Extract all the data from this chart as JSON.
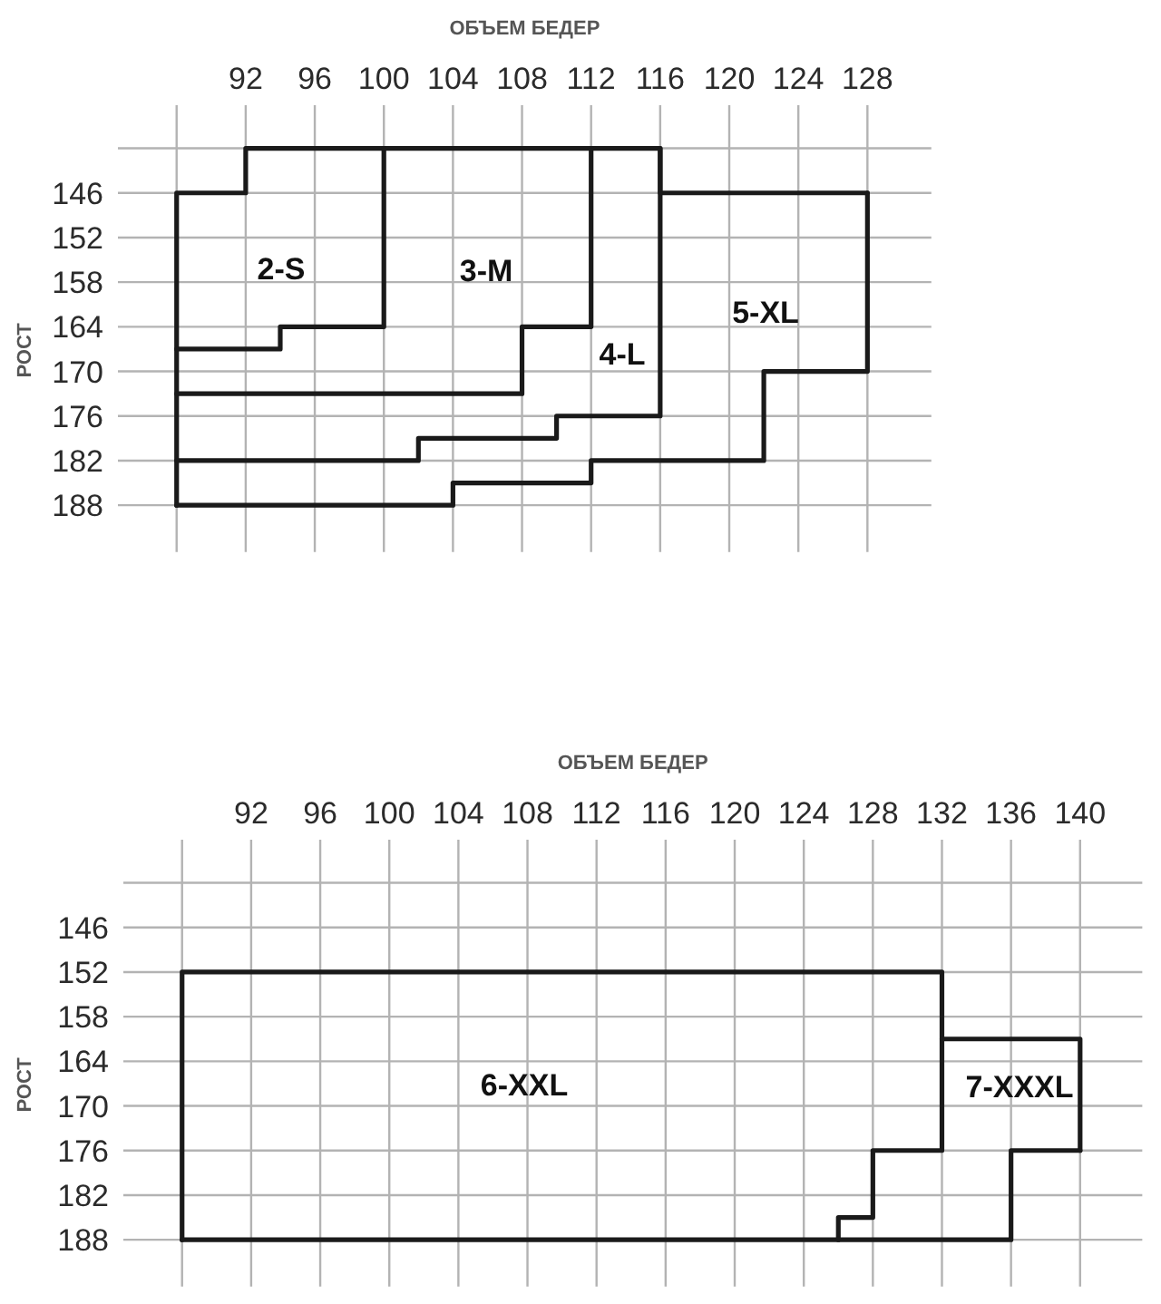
{
  "chart_data": [
    {
      "type": "line",
      "xlabel": "ОБЪЕМ БЕДЕР",
      "ylabel": "РОСТ",
      "xlim": [
        84.6,
        131.7
      ],
      "ylim": [
        194.3,
        134.2
      ],
      "xticks": [
        {
          "value": 88,
          "label": null
        },
        92,
        96,
        100,
        104,
        108,
        112,
        116,
        120,
        124,
        128
      ],
      "yticks": [
        {
          "value": 140,
          "label": null
        },
        146,
        152,
        158,
        164,
        170,
        176,
        182,
        188
      ],
      "grid": true,
      "line_style": "solid",
      "series": [
        {
          "color": "#1a1a1a",
          "x": [
            88,
            88,
            92,
            92,
            116,
            116,
            128
          ],
          "values": [
            188,
            146,
            146,
            140,
            140,
            146,
            146
          ]
        },
        {
          "color": "#1a1a1a",
          "x": [
            88,
            104,
            104,
            112,
            112,
            122,
            122,
            128,
            128
          ],
          "values": [
            188,
            188,
            185,
            185,
            182,
            182,
            170,
            170,
            146
          ]
        },
        {
          "color": "#1a1a1a",
          "x": [
            88,
            94,
            94,
            100,
            100
          ],
          "values": [
            167,
            167,
            164,
            164,
            140
          ]
        },
        {
          "color": "#1a1a1a",
          "x": [
            88,
            108,
            108,
            112,
            112
          ],
          "values": [
            173,
            173,
            164,
            164,
            140
          ]
        },
        {
          "color": "#1a1a1a",
          "x": [
            88,
            102,
            102,
            110,
            110,
            116,
            116
          ],
          "values": [
            182,
            182,
            179,
            179,
            176,
            176,
            140
          ]
        }
      ],
      "annotations": [
        "2-S",
        "3-M",
        "4-L",
        "5-XL"
      ]
    },
    {
      "type": "line",
      "xlabel": "ОБЪЕМ БЕДЕР",
      "ylabel": "РОСТ",
      "xlim": [
        84.6,
        143.6
      ],
      "ylim": [
        194.3,
        134.2
      ],
      "xticks": [
        {
          "value": 88,
          "label": null
        },
        92,
        96,
        100,
        104,
        108,
        112,
        116,
        120,
        124,
        128,
        132,
        136,
        140
      ],
      "yticks": [
        {
          "value": 140,
          "label": null
        },
        146,
        152,
        158,
        164,
        170,
        176,
        182,
        188
      ],
      "grid": true,
      "line_style": "solid",
      "series": [
        {
          "color": "#1a1a1a",
          "x": [
            88,
            88,
            132,
            132,
            140,
            140
          ],
          "values": [
            188,
            152,
            152,
            161,
            161,
            176
          ]
        },
        {
          "color": "#1a1a1a",
          "x": [
            88,
            136,
            136,
            140
          ],
          "values": [
            188,
            188,
            176,
            176
          ]
        },
        {
          "color": "#1a1a1a",
          "x": [
            126,
            126,
            128,
            128,
            132,
            132
          ],
          "values": [
            188,
            185,
            185,
            176,
            176,
            161
          ]
        }
      ],
      "annotations": [
        "6-XXL",
        "7-XXXL"
      ]
    }
  ]
}
